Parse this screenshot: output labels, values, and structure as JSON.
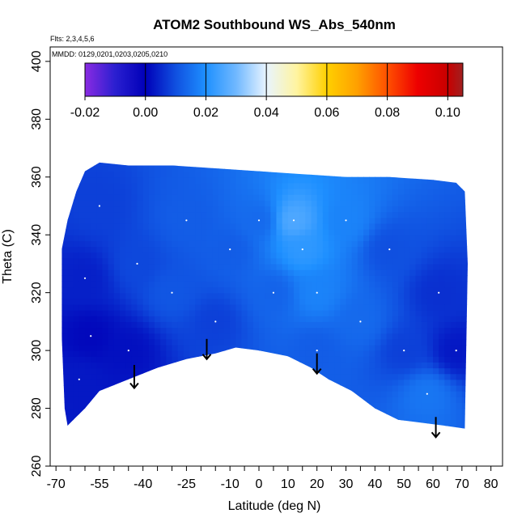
{
  "chart_data": {
    "type": "heatmap",
    "title": "ATOM2 Southbound WS_Abs_540nm",
    "annotations": {
      "flights": "Flts: 2,3,4,5,6",
      "dates": "MMDD: 0129,0201,0203,0205,0210"
    },
    "xlabel": "Latitude (deg N)",
    "ylabel": "Theta (C)",
    "xlim": [
      -72,
      84
    ],
    "ylim": [
      260,
      405
    ],
    "x_ticks": [
      -70,
      -65,
      -60,
      -55,
      -50,
      -45,
      -40,
      -35,
      -30,
      -25,
      -20,
      -15,
      -10,
      -5,
      0,
      5,
      10,
      15,
      20,
      25,
      30,
      35,
      40,
      45,
      50,
      55,
      60,
      65,
      70,
      75,
      80
    ],
    "x_tick_labels": [
      "-70",
      "",
      "",
      "-55",
      "",
      "",
      "-40",
      "",
      "",
      "-25",
      "",
      "",
      "-10",
      "",
      "0",
      "",
      "10",
      "",
      "20",
      "",
      "30",
      "",
      "40",
      "",
      "50",
      "",
      "60",
      "",
      "70",
      "",
      "80"
    ],
    "y_ticks": [
      260,
      280,
      300,
      320,
      340,
      360,
      380,
      400
    ],
    "y_tick_labels": [
      "260",
      "280",
      "300",
      "320",
      "340",
      "360",
      "380",
      "400"
    ],
    "colorbar": {
      "min": -0.02,
      "max": 0.105,
      "ticks": [
        -0.02,
        0.0,
        0.02,
        0.04,
        0.06,
        0.08,
        0.1
      ],
      "tick_labels": [
        "-0.02",
        "0.00",
        "0.02",
        "0.04",
        "0.06",
        "0.08",
        "0.10"
      ],
      "color_stops": [
        {
          "v": -0.02,
          "c": "#8a2be2"
        },
        {
          "v": -0.01,
          "c": "#2a1fd0"
        },
        {
          "v": 0.0,
          "c": "#0000b8"
        },
        {
          "v": 0.01,
          "c": "#1050e0"
        },
        {
          "v": 0.02,
          "c": "#1e90ff"
        },
        {
          "v": 0.03,
          "c": "#70b8ff"
        },
        {
          "v": 0.04,
          "c": "#e8f4ff"
        },
        {
          "v": 0.05,
          "c": "#fff4a0"
        },
        {
          "v": 0.06,
          "c": "#ffd000"
        },
        {
          "v": 0.07,
          "c": "#ffa000"
        },
        {
          "v": 0.08,
          "c": "#ff5000"
        },
        {
          "v": 0.09,
          "c": "#ee0000"
        },
        {
          "v": 0.1,
          "c": "#c80000"
        },
        {
          "v": 0.105,
          "c": "#a02020"
        }
      ]
    },
    "data_region_outline": [
      [
        -66,
        274
      ],
      [
        -64,
        276
      ],
      [
        -60,
        280
      ],
      [
        -55,
        286
      ],
      [
        -45,
        290
      ],
      [
        -35,
        294
      ],
      [
        -25,
        297
      ],
      [
        -15,
        299
      ],
      [
        -8,
        301
      ],
      [
        0,
        300
      ],
      [
        10,
        298
      ],
      [
        18,
        294
      ],
      [
        24,
        290
      ],
      [
        32,
        286
      ],
      [
        40,
        280
      ],
      [
        48,
        276
      ],
      [
        56,
        275
      ],
      [
        64,
        274
      ],
      [
        71,
        273
      ],
      [
        72,
        330
      ],
      [
        71,
        355
      ],
      [
        68,
        358
      ],
      [
        60,
        359
      ],
      [
        45,
        360
      ],
      [
        30,
        360
      ],
      [
        15,
        361
      ],
      [
        0,
        362
      ],
      [
        -15,
        363
      ],
      [
        -30,
        364
      ],
      [
        -45,
        364
      ],
      [
        -55,
        365
      ],
      [
        -60,
        362
      ],
      [
        -63,
        355
      ],
      [
        -66,
        345
      ],
      [
        -68,
        335
      ],
      [
        -68,
        305
      ],
      [
        -67,
        280
      ]
    ],
    "field_samples": [
      {
        "x": -62,
        "y": 290,
        "v": 0.003
      },
      {
        "x": -58,
        "y": 305,
        "v": 0.001
      },
      {
        "x": -60,
        "y": 325,
        "v": 0.004
      },
      {
        "x": -55,
        "y": 350,
        "v": 0.008
      },
      {
        "x": -45,
        "y": 300,
        "v": 0.002
      },
      {
        "x": -42,
        "y": 330,
        "v": 0.009
      },
      {
        "x": -30,
        "y": 320,
        "v": 0.011
      },
      {
        "x": -25,
        "y": 345,
        "v": 0.012
      },
      {
        "x": -15,
        "y": 310,
        "v": 0.008
      },
      {
        "x": -10,
        "y": 335,
        "v": 0.012
      },
      {
        "x": 0,
        "y": 345,
        "v": 0.014
      },
      {
        "x": 5,
        "y": 320,
        "v": 0.013
      },
      {
        "x": 12,
        "y": 345,
        "v": 0.026
      },
      {
        "x": 15,
        "y": 335,
        "v": 0.022
      },
      {
        "x": 20,
        "y": 320,
        "v": 0.018
      },
      {
        "x": 20,
        "y": 300,
        "v": 0.012
      },
      {
        "x": 30,
        "y": 345,
        "v": 0.018
      },
      {
        "x": 35,
        "y": 310,
        "v": 0.014
      },
      {
        "x": 45,
        "y": 335,
        "v": 0.01
      },
      {
        "x": 50,
        "y": 300,
        "v": 0.008
      },
      {
        "x": 58,
        "y": 285,
        "v": 0.016
      },
      {
        "x": 62,
        "y": 320,
        "v": 0.006
      },
      {
        "x": 68,
        "y": 300,
        "v": 0.003
      }
    ],
    "flight_arrows": [
      {
        "lat": -43,
        "theta_top": 295,
        "theta_tip": 287
      },
      {
        "lat": -18,
        "theta_top": 304,
        "theta_tip": 297
      },
      {
        "lat": 20,
        "theta_top": 299,
        "theta_tip": 292
      },
      {
        "lat": 61,
        "theta_top": 277,
        "theta_tip": 270
      }
    ],
    "grid": false,
    "legend": "colorbar-top-inside"
  }
}
